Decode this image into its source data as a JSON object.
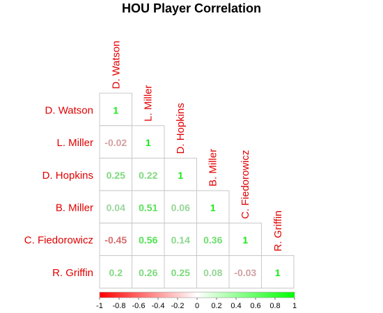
{
  "chart_data": {
    "type": "heatmap",
    "title": "HOU Player Correlation",
    "variables": [
      "D. Watson",
      "L. Miller",
      "D. Hopkins",
      "B. Miller",
      "C. Fiedorowicz",
      "R. Griffin"
    ],
    "lower_triangle": [
      [
        "1"
      ],
      [
        "-0.02",
        "1"
      ],
      [
        "0.25",
        "0.22",
        "1"
      ],
      [
        "0.04",
        "0.51",
        "0.06",
        "1"
      ],
      [
        "-0.45",
        "0.56",
        "0.14",
        "0.36",
        "1"
      ],
      [
        "0.2",
        "0.26",
        "0.25",
        "0.08",
        "-0.03",
        "1"
      ]
    ],
    "colorbar": {
      "range": [
        -1,
        1
      ],
      "tick_labels": [
        "-1",
        "-0.8",
        "-0.6",
        "-0.4",
        "-0.2",
        "0",
        "0.2",
        "0.4",
        "0.6",
        "0.8",
        "1"
      ],
      "low_color": "#ff0000",
      "mid_color": "#ffffff",
      "high_color": "#00ff00"
    },
    "label_color": "#e00000"
  }
}
